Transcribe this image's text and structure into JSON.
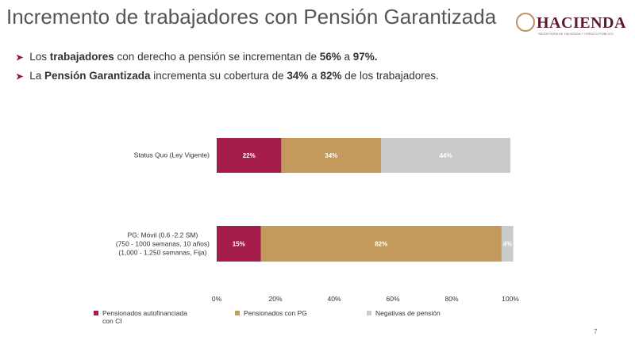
{
  "header": {
    "title": "Incremento de trabajadores con Pensión Garantizada",
    "logo": "HACIENDA",
    "logo_subtitle": "SECRETARÍA DE HACIENDA Y CRÉDITO PÚBLICO"
  },
  "bullets": [
    [
      {
        "text": "Los "
      },
      {
        "text": "trabajadores",
        "bold": true
      },
      {
        "text": " con derecho a pensión se incrementan de "
      },
      {
        "text": "56%",
        "bold": true
      },
      {
        "text": " a "
      },
      {
        "text": "97%.",
        "bold": true
      }
    ],
    [
      {
        "text": "La "
      },
      {
        "text": "Pensión Garantizada",
        "bold": true
      },
      {
        "text": " incrementa su cobertura de "
      },
      {
        "text": "34%",
        "bold": true
      },
      {
        "text": " a "
      },
      {
        "text": "82%",
        "bold": true
      },
      {
        "text": " de los trabajadores."
      }
    ]
  ],
  "page_number": "7",
  "chart_data": {
    "type": "stacked-barh",
    "categories": [
      "Status Quo (Ley Vigente)",
      "PG: Móvil (0.6 -2.2 SM)\n(750 - 1000 semanas, 10 años)\n(1,000 - 1,250 semanas, Fija)"
    ],
    "series": [
      {
        "name": "Pensionados autofinanciada con CI",
        "color": "#a51d4a",
        "values": [
          22,
          15
        ],
        "value_labels": [
          "22%",
          "15%"
        ]
      },
      {
        "name": "Pensionados con PG",
        "color": "#c49a5c",
        "values": [
          34,
          82
        ],
        "value_labels": [
          "34%",
          "82%"
        ]
      },
      {
        "name": "Negativas de pensión",
        "color": "#cacaca",
        "values": [
          44,
          4
        ],
        "value_labels": [
          "44%",
          "4%"
        ]
      }
    ],
    "xlim": [
      0,
      100
    ],
    "xticks": [
      {
        "value": 0,
        "label": "0%"
      },
      {
        "value": 20,
        "label": "20%"
      },
      {
        "value": 40,
        "label": "40%"
      },
      {
        "value": 60,
        "label": "60%"
      },
      {
        "value": 80,
        "label": "80%"
      },
      {
        "value": 100,
        "label": "100%"
      }
    ]
  }
}
